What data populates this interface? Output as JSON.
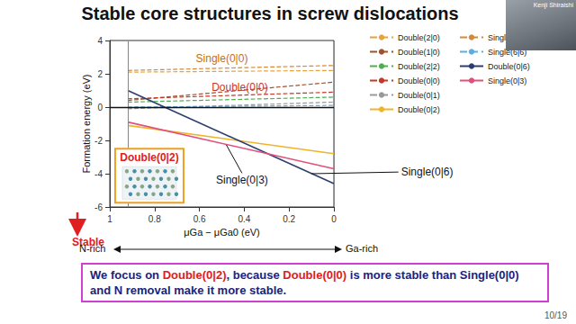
{
  "slide": {
    "title": "Stable core structures in screw dislocations",
    "speaker": "Kenji Shiraishi",
    "page": "10/19",
    "conclusion": [
      {
        "text": "We focus on ",
        "color": "#1a237e"
      },
      {
        "text": "Double(0|2)",
        "color": "#e02020"
      },
      {
        "text": ", because ",
        "color": "#1a237e"
      },
      {
        "text": "Double(0|0)",
        "color": "#e02020"
      },
      {
        "text": " is more stable than Single(0|0) and N removal make it more stable.",
        "color": "#1a237e"
      }
    ]
  },
  "chart_data": {
    "type": "line",
    "x_label": "μGa − μGa0 (eV)",
    "y_label": "Formation energy (eV)",
    "stable_label": "Stable",
    "x_end_labels": [
      "N-rich",
      "Ga-rich"
    ],
    "xlim": [
      1,
      0
    ],
    "xticks": [
      1,
      0.8,
      0.6,
      0.4,
      0.2,
      0
    ],
    "ylim": [
      -6,
      4
    ],
    "yticks": [
      -6,
      -4,
      -2,
      0,
      2,
      4
    ],
    "grid": false,
    "legend": "right",
    "vlines": [
      0.92,
      0
    ],
    "hlines": [
      0
    ],
    "x": [
      0.92,
      0
    ],
    "series": [
      {
        "name": "Double(2|0)",
        "color": "#e8a33d",
        "line_style": "dashed",
        "values": [
          2.1,
          2.2
        ]
      },
      {
        "name": "Double(1|0)",
        "color": "#a0522d",
        "line_style": "dashed",
        "values": [
          0.4,
          1.5
        ]
      },
      {
        "name": "Double(2|2)",
        "color": "#4caf50",
        "line_style": "dashed",
        "values": [
          0.3,
          0.6
        ]
      },
      {
        "name": "Double(0|0)",
        "color": "#c0392b",
        "line_style": "dashed",
        "values": [
          0.5,
          0.9
        ]
      },
      {
        "name": "Double(0|1)",
        "color": "#999999",
        "line_style": "dashed",
        "values": [
          -0.1,
          0.3
        ]
      },
      {
        "name": "Double(0|2)",
        "color": "#f0b429",
        "line_style": "solid",
        "values": [
          -1.1,
          -2.8
        ]
      },
      {
        "name": "Single(0|0)",
        "color": "#d4893a",
        "line_style": "dashed",
        "values": [
          2.2,
          2.5
        ]
      },
      {
        "name": "Single(6|6)",
        "color": "#5dade2",
        "line_style": "dashed",
        "values": [
          0.0,
          0.1
        ]
      },
      {
        "name": "Double(0|6)",
        "color": "#2c3e70",
        "line_style": "solid",
        "values": [
          1.0,
          -4.6
        ]
      },
      {
        "name": "Single(0|3)",
        "color": "#e0507a",
        "line_style": "solid",
        "values": [
          -0.9,
          -3.7
        ]
      }
    ],
    "annotations": [
      {
        "text": "Single(0|0)",
        "x": 0.5,
        "y": 2.9,
        "color": "#c07020"
      },
      {
        "text": "Double(0|0)",
        "x": 0.42,
        "y": 1.2,
        "color": "#c0392b"
      },
      {
        "text": "Double(0|2)",
        "x": 0.96,
        "y": -2.5,
        "color": "#e02020",
        "box": true
      },
      {
        "text": "Single(0|3)",
        "x": 0.41,
        "y": -4.4,
        "color": "#111111",
        "points_to": [
          0.48,
          -2.27
        ]
      },
      {
        "text": "Single(0|6)",
        "x": -0.3,
        "y": -3.9,
        "color": "#111111",
        "points_to": [
          0.1,
          -4.0
        ]
      }
    ]
  }
}
